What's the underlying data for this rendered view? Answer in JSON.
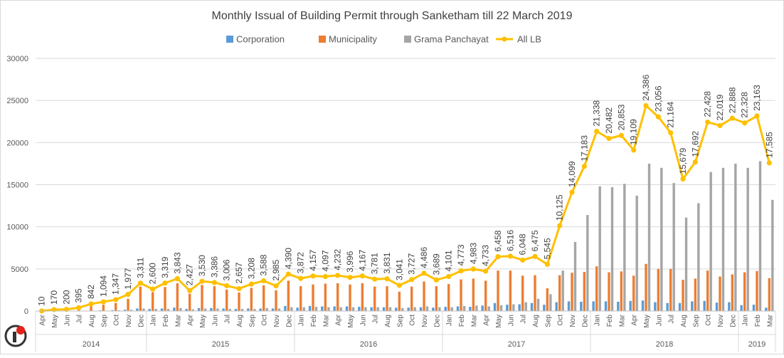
{
  "chart_data": {
    "type": "bar",
    "title": "Monthly Issual of Building Permit through Sanketham till  22 March 2019",
    "xlabel": "",
    "ylabel": "",
    "ylim": [
      0,
      30000
    ],
    "y_ticks": [
      "0",
      "5000",
      "10000",
      "15000",
      "20000",
      "25000",
      "30000"
    ],
    "grid": true,
    "legend_position": "top",
    "categories": [
      "Apr",
      "May",
      "Jun",
      "Jul",
      "Aug",
      "Sep",
      "Oct",
      "Nov",
      "Dec",
      "Jan",
      "Feb",
      "Mar",
      "Apr",
      "May",
      "Jun",
      "Jul",
      "Aug",
      "Sep",
      "Oct",
      "Nov",
      "Dec",
      "Jan",
      "Feb",
      "Mar",
      "Apr",
      "May",
      "Jun",
      "Jul",
      "Aug",
      "Sep",
      "Oct",
      "Nov",
      "Dec",
      "Jan",
      "Feb",
      "Mar",
      "Apr",
      "May",
      "Jun",
      "Jul",
      "Aug",
      "Sep",
      "Oct",
      "Nov",
      "Dec",
      "Jan",
      "Feb",
      "Mar",
      "Apr",
      "May",
      "Jun",
      "Jul",
      "Aug",
      "Sep",
      "Oct",
      "Nov",
      "Dec",
      "Jan",
      "Feb",
      "Mar"
    ],
    "year_groups": [
      {
        "label": "2014",
        "count": 9
      },
      {
        "label": "2015",
        "count": 12
      },
      {
        "label": "2016",
        "count": 12
      },
      {
        "label": "2017",
        "count": 12
      },
      {
        "label": "2018",
        "count": 12
      },
      {
        "label": "2019",
        "count": 3
      }
    ],
    "series": [
      {
        "name": "Corporation",
        "type": "bar",
        "color": "#5B9BD5",
        "values": [
          0,
          10,
          10,
          20,
          40,
          80,
          100,
          150,
          300,
          250,
          300,
          400,
          250,
          350,
          350,
          300,
          250,
          300,
          300,
          300,
          600,
          400,
          600,
          550,
          550,
          550,
          500,
          450,
          450,
          400,
          400,
          450,
          400,
          500,
          550,
          500,
          650,
          950,
          750,
          800,
          950,
          750,
          1050,
          1150,
          1100,
          1150,
          1150,
          1100,
          1200,
          1250,
          1050,
          950,
          950,
          1150,
          1200,
          1000,
          1050,
          700,
          750,
          400
        ]
      },
      {
        "name": "Municipality",
        "type": "bar",
        "color": "#ED7D31",
        "values": [
          10,
          100,
          150,
          250,
          550,
          750,
          950,
          1450,
          2900,
          2250,
          2850,
          3300,
          2050,
          3100,
          2950,
          2550,
          2200,
          2750,
          3050,
          2450,
          3600,
          2950,
          3150,
          3250,
          3300,
          3150,
          3300,
          2900,
          2950,
          2300,
          2900,
          3500,
          2950,
          3200,
          3750,
          3850,
          3600,
          4800,
          4800,
          4200,
          4250,
          2700,
          4250,
          4550,
          4650,
          5300,
          4600,
          4700,
          4200,
          5600,
          5000,
          5000,
          3700,
          3850,
          4800,
          4100,
          4350,
          4600,
          4750,
          3900
        ]
      },
      {
        "name": "Grama Panchayat",
        "type": "bar",
        "color": "#A5A5A5",
        "values": [
          0,
          10,
          10,
          20,
          30,
          50,
          80,
          150,
          300,
          250,
          250,
          350,
          200,
          300,
          300,
          250,
          250,
          250,
          350,
          300,
          450,
          450,
          500,
          450,
          450,
          450,
          450,
          450,
          450,
          350,
          450,
          550,
          450,
          450,
          600,
          650,
          550,
          700,
          800,
          1050,
          1450,
          2000,
          4800,
          8200,
          11400,
          14800,
          14700,
          15100,
          13700,
          17500,
          17000,
          15200,
          11100,
          12800,
          16500,
          17000,
          17500,
          17000,
          17800,
          13200
        ]
      },
      {
        "name": "All LB",
        "type": "line",
        "color": "#FFC000",
        "values": [
          10,
          170,
          200,
          395,
          842,
          1094,
          1347,
          1977,
          3311,
          2600,
          3319,
          3843,
          2427,
          3530,
          3386,
          3006,
          2657,
          3208,
          3588,
          2985,
          4390,
          3872,
          4157,
          4097,
          4232,
          3996,
          4167,
          3781,
          3831,
          3041,
          3727,
          4486,
          3689,
          4101,
          4773,
          4983,
          4733,
          6458,
          6516,
          6048,
          6475,
          5545,
          10125,
          14099,
          17183,
          21338,
          20482,
          20853,
          19109,
          24386,
          23056,
          21164,
          15679,
          17692,
          22428,
          22019,
          22888,
          22328,
          23163,
          17585
        ]
      }
    ],
    "data_labels": [
      "10",
      "170",
      "200",
      "395",
      "842",
      "1,094",
      "1,347",
      "1,977",
      "3,311",
      "2,600",
      "3,319",
      "3,843",
      "2,427",
      "3,530",
      "3,386",
      "3,006",
      "2,657",
      "3,208",
      "3,588",
      "2,985",
      "4,390",
      "3,872",
      "4,157",
      "4,097",
      "4,232",
      "3,996",
      "4,167",
      "3,781",
      "3,831",
      "3,041",
      "3,727",
      "4,486",
      "3,689",
      "4,101",
      "4,773",
      "4,983",
      "4,733",
      "6,458",
      "6,516",
      "6,048",
      "6,475",
      "5,545",
      "10,125",
      "14,099",
      "17,183",
      "21,338",
      "20,482",
      "20,853",
      "19,109",
      "24,386",
      "23,056",
      "21,164",
      "15,679",
      "17,692",
      "22,428",
      "22,019",
      "22,888",
      "22,328",
      "23,163",
      "17,585"
    ]
  },
  "colors": {
    "gridline": "#D9D9D9",
    "axis_text": "#595959",
    "title_text": "#404040",
    "logo_red": "#E2231A",
    "logo_dark": "#333333"
  },
  "logo": {
    "icon": "sanketham-logo-icon"
  }
}
